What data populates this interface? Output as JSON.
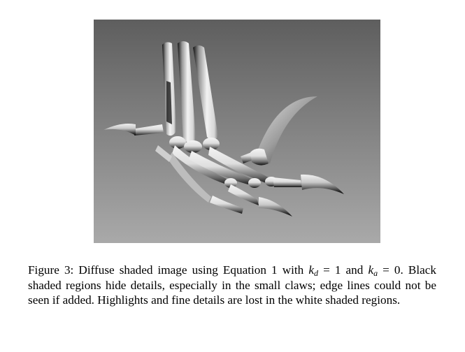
{
  "figure": {
    "image_description_icon": "dinosaur-foot-skeleton-diffuse-render",
    "background_colors": {
      "top": "#5e5e5e",
      "bottom": "#a9a9a9"
    },
    "bone_colors": {
      "light": "#f4f4f4",
      "mid": "#b9b9b9",
      "dark": "#0f0f0f"
    }
  },
  "caption": {
    "label": "Figure 3:",
    "text_part1": " Diffuse shaded image using Equation 1 with ",
    "kd_symbol": "k",
    "kd_sub": "d",
    "kd_value": " = 1",
    "text_part2": " and ",
    "ka_symbol": "k",
    "ka_sub": "a",
    "ka_value": " = 0",
    "text_part3": ". Black shaded regions hide details, especially in the small claws; edge lines could not be seen if added. Highlights and fine details are lost in the white shaded regions."
  }
}
